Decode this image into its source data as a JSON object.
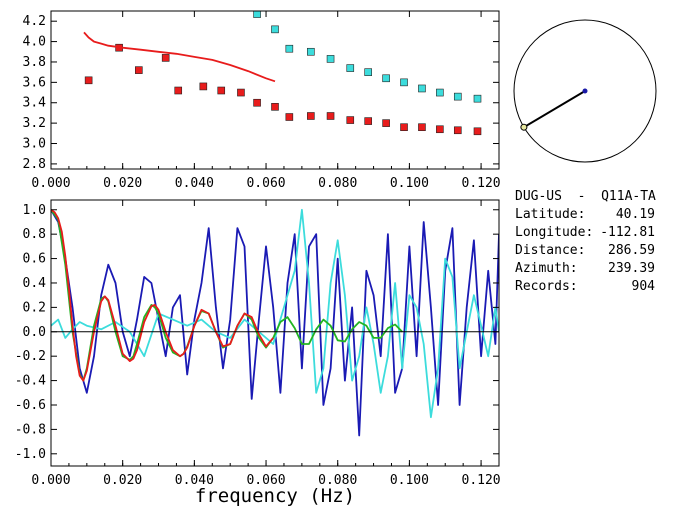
{
  "info": {
    "station": "DUG-US  -  Q11A-TA",
    "rows": [
      {
        "label": "Latitude:",
        "value": "40.19"
      },
      {
        "label": "Longitude:",
        "value": "-112.81"
      },
      {
        "label": "Distance:",
        "value": "286.59"
      },
      {
        "label": "Azimuth:",
        "value": "239.39"
      },
      {
        "label": "Records:",
        "value": "904"
      }
    ]
  },
  "azimuth_plot": {
    "azimuth_deg": 239.39,
    "colors": {
      "circle": "#000000",
      "line": "#000000",
      "center_dot": "#1a1aa8",
      "end_dot": "#e8e8a0"
    }
  },
  "chart_data": [
    {
      "type": "scatter",
      "title": "",
      "xlabel": "",
      "ylabel": "",
      "xlim": [
        0,
        0.125
      ],
      "ylim": [
        2.75,
        4.3
      ],
      "xticks": [
        "0.000",
        "0.020",
        "0.040",
        "0.060",
        "0.080",
        "0.100",
        "0.120"
      ],
      "yticks": [
        "2.8",
        "3.0",
        "3.2",
        "3.4",
        "3.6",
        "3.8",
        "4.0",
        "4.2"
      ],
      "series": [
        {
          "kind": "markers",
          "color": "#e81c1c",
          "x": [
            0.0105,
            0.019,
            0.0245,
            0.032,
            0.0355,
            0.0425,
            0.0475,
            0.053,
            0.0575,
            0.0625,
            0.0665,
            0.0725,
            0.078,
            0.0835,
            0.0885,
            0.0935,
            0.0985,
            0.1035,
            0.1085,
            0.1135,
            0.119
          ],
          "y": [
            3.62,
            3.94,
            3.72,
            3.84,
            3.52,
            3.56,
            3.52,
            3.5,
            3.4,
            3.36,
            3.26,
            3.27,
            3.27,
            3.23,
            3.22,
            3.2,
            3.16,
            3.16,
            3.14,
            3.13,
            3.12
          ]
        },
        {
          "kind": "markers",
          "color": "#3cdcdc",
          "x": [
            0.0575,
            0.0625,
            0.0665,
            0.0725,
            0.078,
            0.0835,
            0.0885,
            0.0935,
            0.0985,
            0.1035,
            0.1085,
            0.1135,
            0.119
          ],
          "y": [
            4.27,
            4.12,
            3.93,
            3.9,
            3.83,
            3.74,
            3.7,
            3.64,
            3.6,
            3.54,
            3.5,
            3.46,
            3.44
          ]
        },
        {
          "kind": "line",
          "color": "#e81c1c",
          "x": [
            0.0092,
            0.0105,
            0.012,
            0.014,
            0.016,
            0.018,
            0.02,
            0.025,
            0.03,
            0.035,
            0.04,
            0.045,
            0.05,
            0.055,
            0.06,
            0.0625
          ],
          "y": [
            4.09,
            4.04,
            4.0,
            3.98,
            3.96,
            3.95,
            3.94,
            3.92,
            3.9,
            3.88,
            3.85,
            3.82,
            3.77,
            3.71,
            3.64,
            3.61
          ]
        }
      ]
    },
    {
      "type": "line",
      "title": "",
      "xlabel": "frequency (Hz)",
      "ylabel": "",
      "xlim": [
        0,
        0.125
      ],
      "ylim": [
        -1.1,
        1.08
      ],
      "xticks": [
        "0.000",
        "0.020",
        "0.040",
        "0.060",
        "0.080",
        "0.100",
        "0.120"
      ],
      "yticks": [
        "-1.0",
        "-0.8",
        "-0.6",
        "-0.4",
        "-0.2",
        "0.0",
        "0.2",
        "0.4",
        "0.6",
        "0.8",
        "1.0"
      ],
      "zero_line": true,
      "series": [
        {
          "color": "#1a1ab4",
          "x": [
            0.0,
            0.002,
            0.004,
            0.006,
            0.008,
            0.01,
            0.012,
            0.014,
            0.016,
            0.018,
            0.02,
            0.022,
            0.024,
            0.026,
            0.028,
            0.03,
            0.032,
            0.034,
            0.036,
            0.038,
            0.04,
            0.042,
            0.044,
            0.046,
            0.048,
            0.05,
            0.052,
            0.054,
            0.056,
            0.058,
            0.06,
            0.062,
            0.064,
            0.066,
            0.068,
            0.07,
            0.072,
            0.074,
            0.076,
            0.078,
            0.08,
            0.082,
            0.084,
            0.086,
            0.088,
            0.09,
            0.092,
            0.094,
            0.096,
            0.098,
            0.1,
            0.102,
            0.104,
            0.106,
            0.108,
            0.11,
            0.112,
            0.114,
            0.116,
            0.118,
            0.12,
            0.122,
            0.124,
            0.125
          ],
          "y": [
            1.0,
            0.9,
            0.6,
            0.2,
            -0.3,
            -0.5,
            -0.2,
            0.3,
            0.55,
            0.4,
            0.0,
            -0.2,
            0.1,
            0.45,
            0.4,
            0.1,
            -0.2,
            0.2,
            0.3,
            -0.35,
            0.1,
            0.4,
            0.85,
            0.2,
            -0.3,
            0.1,
            0.85,
            0.7,
            -0.55,
            0.1,
            0.7,
            0.2,
            -0.5,
            0.4,
            0.8,
            -0.3,
            0.7,
            0.8,
            -0.6,
            -0.3,
            0.6,
            -0.4,
            0.2,
            -0.85,
            0.5,
            0.3,
            -0.2,
            0.8,
            -0.5,
            -0.3,
            0.7,
            -0.2,
            0.9,
            0.2,
            -0.6,
            0.5,
            0.85,
            -0.6,
            0.2,
            0.75,
            -0.2,
            0.5,
            -0.1,
            0.8
          ]
        },
        {
          "color": "#3cdcdc",
          "x": [
            0.0,
            0.002,
            0.004,
            0.006,
            0.008,
            0.01,
            0.014,
            0.018,
            0.022,
            0.026,
            0.03,
            0.034,
            0.038,
            0.042,
            0.046,
            0.05,
            0.054,
            0.058,
            0.062,
            0.066,
            0.068,
            0.07,
            0.072,
            0.074,
            0.076,
            0.078,
            0.08,
            0.082,
            0.084,
            0.086,
            0.088,
            0.09,
            0.092,
            0.094,
            0.096,
            0.098,
            0.1,
            0.102,
            0.104,
            0.106,
            0.108,
            0.11,
            0.112,
            0.114,
            0.116,
            0.118,
            0.12,
            0.122,
            0.124,
            0.125
          ],
          "y": [
            0.05,
            0.1,
            -0.05,
            0.02,
            0.08,
            0.05,
            0.02,
            0.08,
            0.0,
            -0.2,
            0.15,
            0.1,
            0.05,
            0.1,
            0.0,
            -0.05,
            0.1,
            0.0,
            -0.1,
            0.3,
            0.5,
            1.0,
            0.4,
            -0.5,
            -0.3,
            0.4,
            0.75,
            0.3,
            -0.4,
            -0.2,
            0.2,
            -0.1,
            -0.5,
            -0.2,
            0.4,
            -0.3,
            0.3,
            0.2,
            -0.1,
            -0.7,
            -0.3,
            0.6,
            0.45,
            -0.3,
            0.0,
            0.3,
            0.05,
            -0.2,
            0.2,
            0.0
          ]
        },
        {
          "color": "#22b422",
          "x": [
            0.0,
            0.002,
            0.004,
            0.006,
            0.008,
            0.009,
            0.01,
            0.012,
            0.014,
            0.015,
            0.016,
            0.018,
            0.02,
            0.022,
            0.023,
            0.024,
            0.026,
            0.028,
            0.029,
            0.03,
            0.032,
            0.034,
            0.036,
            0.037,
            0.038,
            0.04,
            0.042,
            0.044,
            0.046,
            0.048,
            0.05,
            0.052,
            0.054,
            0.056,
            0.058,
            0.06,
            0.062,
            0.064,
            0.066,
            0.068,
            0.07,
            0.072,
            0.074,
            0.076,
            0.078,
            0.08,
            0.082,
            0.084,
            0.086,
            0.088,
            0.09,
            0.092,
            0.094,
            0.096,
            0.098
          ],
          "y": [
            1.0,
            0.92,
            0.55,
            0.0,
            -0.35,
            -0.4,
            -0.3,
            0.05,
            0.27,
            0.29,
            0.25,
            0.0,
            -0.2,
            -0.23,
            -0.2,
            -0.1,
            0.12,
            0.22,
            0.2,
            0.15,
            -0.05,
            -0.17,
            -0.2,
            -0.18,
            -0.12,
            0.05,
            0.17,
            0.15,
            0.0,
            -0.13,
            -0.1,
            0.05,
            0.15,
            0.1,
            -0.05,
            -0.13,
            -0.05,
            0.08,
            0.12,
            0.03,
            -0.1,
            -0.1,
            0.02,
            0.1,
            0.05,
            -0.07,
            -0.08,
            0.02,
            0.08,
            0.05,
            -0.05,
            -0.05,
            0.03,
            0.06,
            0.0
          ]
        },
        {
          "color": "#e81c1c",
          "x": [
            0.0,
            0.001,
            0.002,
            0.003,
            0.004,
            0.005,
            0.006,
            0.007,
            0.008,
            0.009,
            0.01,
            0.012,
            0.014,
            0.015,
            0.016,
            0.018,
            0.02,
            0.022,
            0.023,
            0.024,
            0.026,
            0.028,
            0.029,
            0.03,
            0.032,
            0.034,
            0.036,
            0.037,
            0.038,
            0.04,
            0.042,
            0.044,
            0.046,
            0.048,
            0.05,
            0.052,
            0.054,
            0.056,
            0.058,
            0.06,
            0.062
          ],
          "y": [
            1.0,
            0.98,
            0.93,
            0.82,
            0.62,
            0.35,
            0.05,
            -0.2,
            -0.36,
            -0.4,
            -0.32,
            0.0,
            0.25,
            0.29,
            0.26,
            0.05,
            -0.18,
            -0.24,
            -0.22,
            -0.15,
            0.08,
            0.21,
            0.22,
            0.18,
            0.0,
            -0.15,
            -0.2,
            -0.18,
            -0.13,
            0.05,
            0.18,
            0.15,
            0.0,
            -0.12,
            -0.1,
            0.05,
            0.15,
            0.12,
            -0.02,
            -0.12,
            -0.05
          ]
        }
      ]
    }
  ]
}
